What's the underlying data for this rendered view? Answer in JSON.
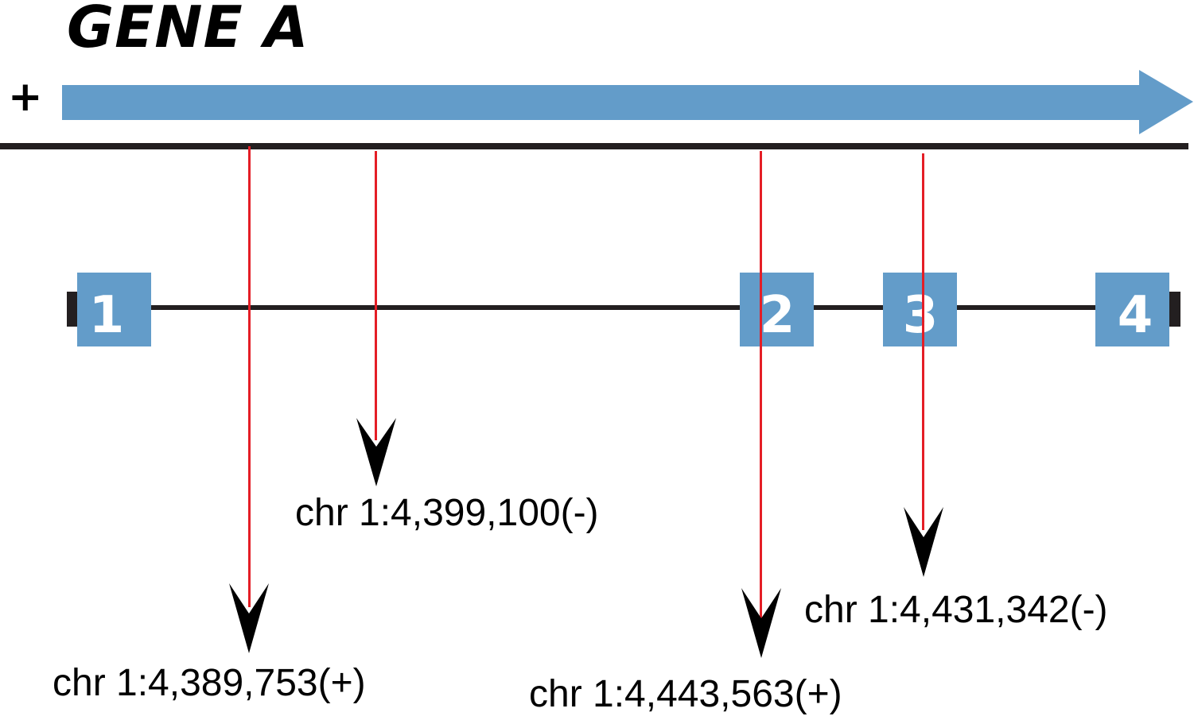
{
  "title": "GENE A",
  "strand": "+",
  "colors": {
    "gene_arrow": "#639cc9",
    "exon": "#639cc9",
    "line": "#231f20",
    "marker": "#e41e26",
    "text": "#000000"
  },
  "exons": [
    {
      "label": "1"
    },
    {
      "label": "2"
    },
    {
      "label": "3"
    },
    {
      "label": "4"
    }
  ],
  "sites": [
    {
      "label": "chr 1:4,389,753(+)"
    },
    {
      "label": "chr 1:4,399,100(-)"
    },
    {
      "label": "chr 1:4,443,563(+)"
    },
    {
      "label": "chr 1:4,431,342(-)"
    }
  ]
}
